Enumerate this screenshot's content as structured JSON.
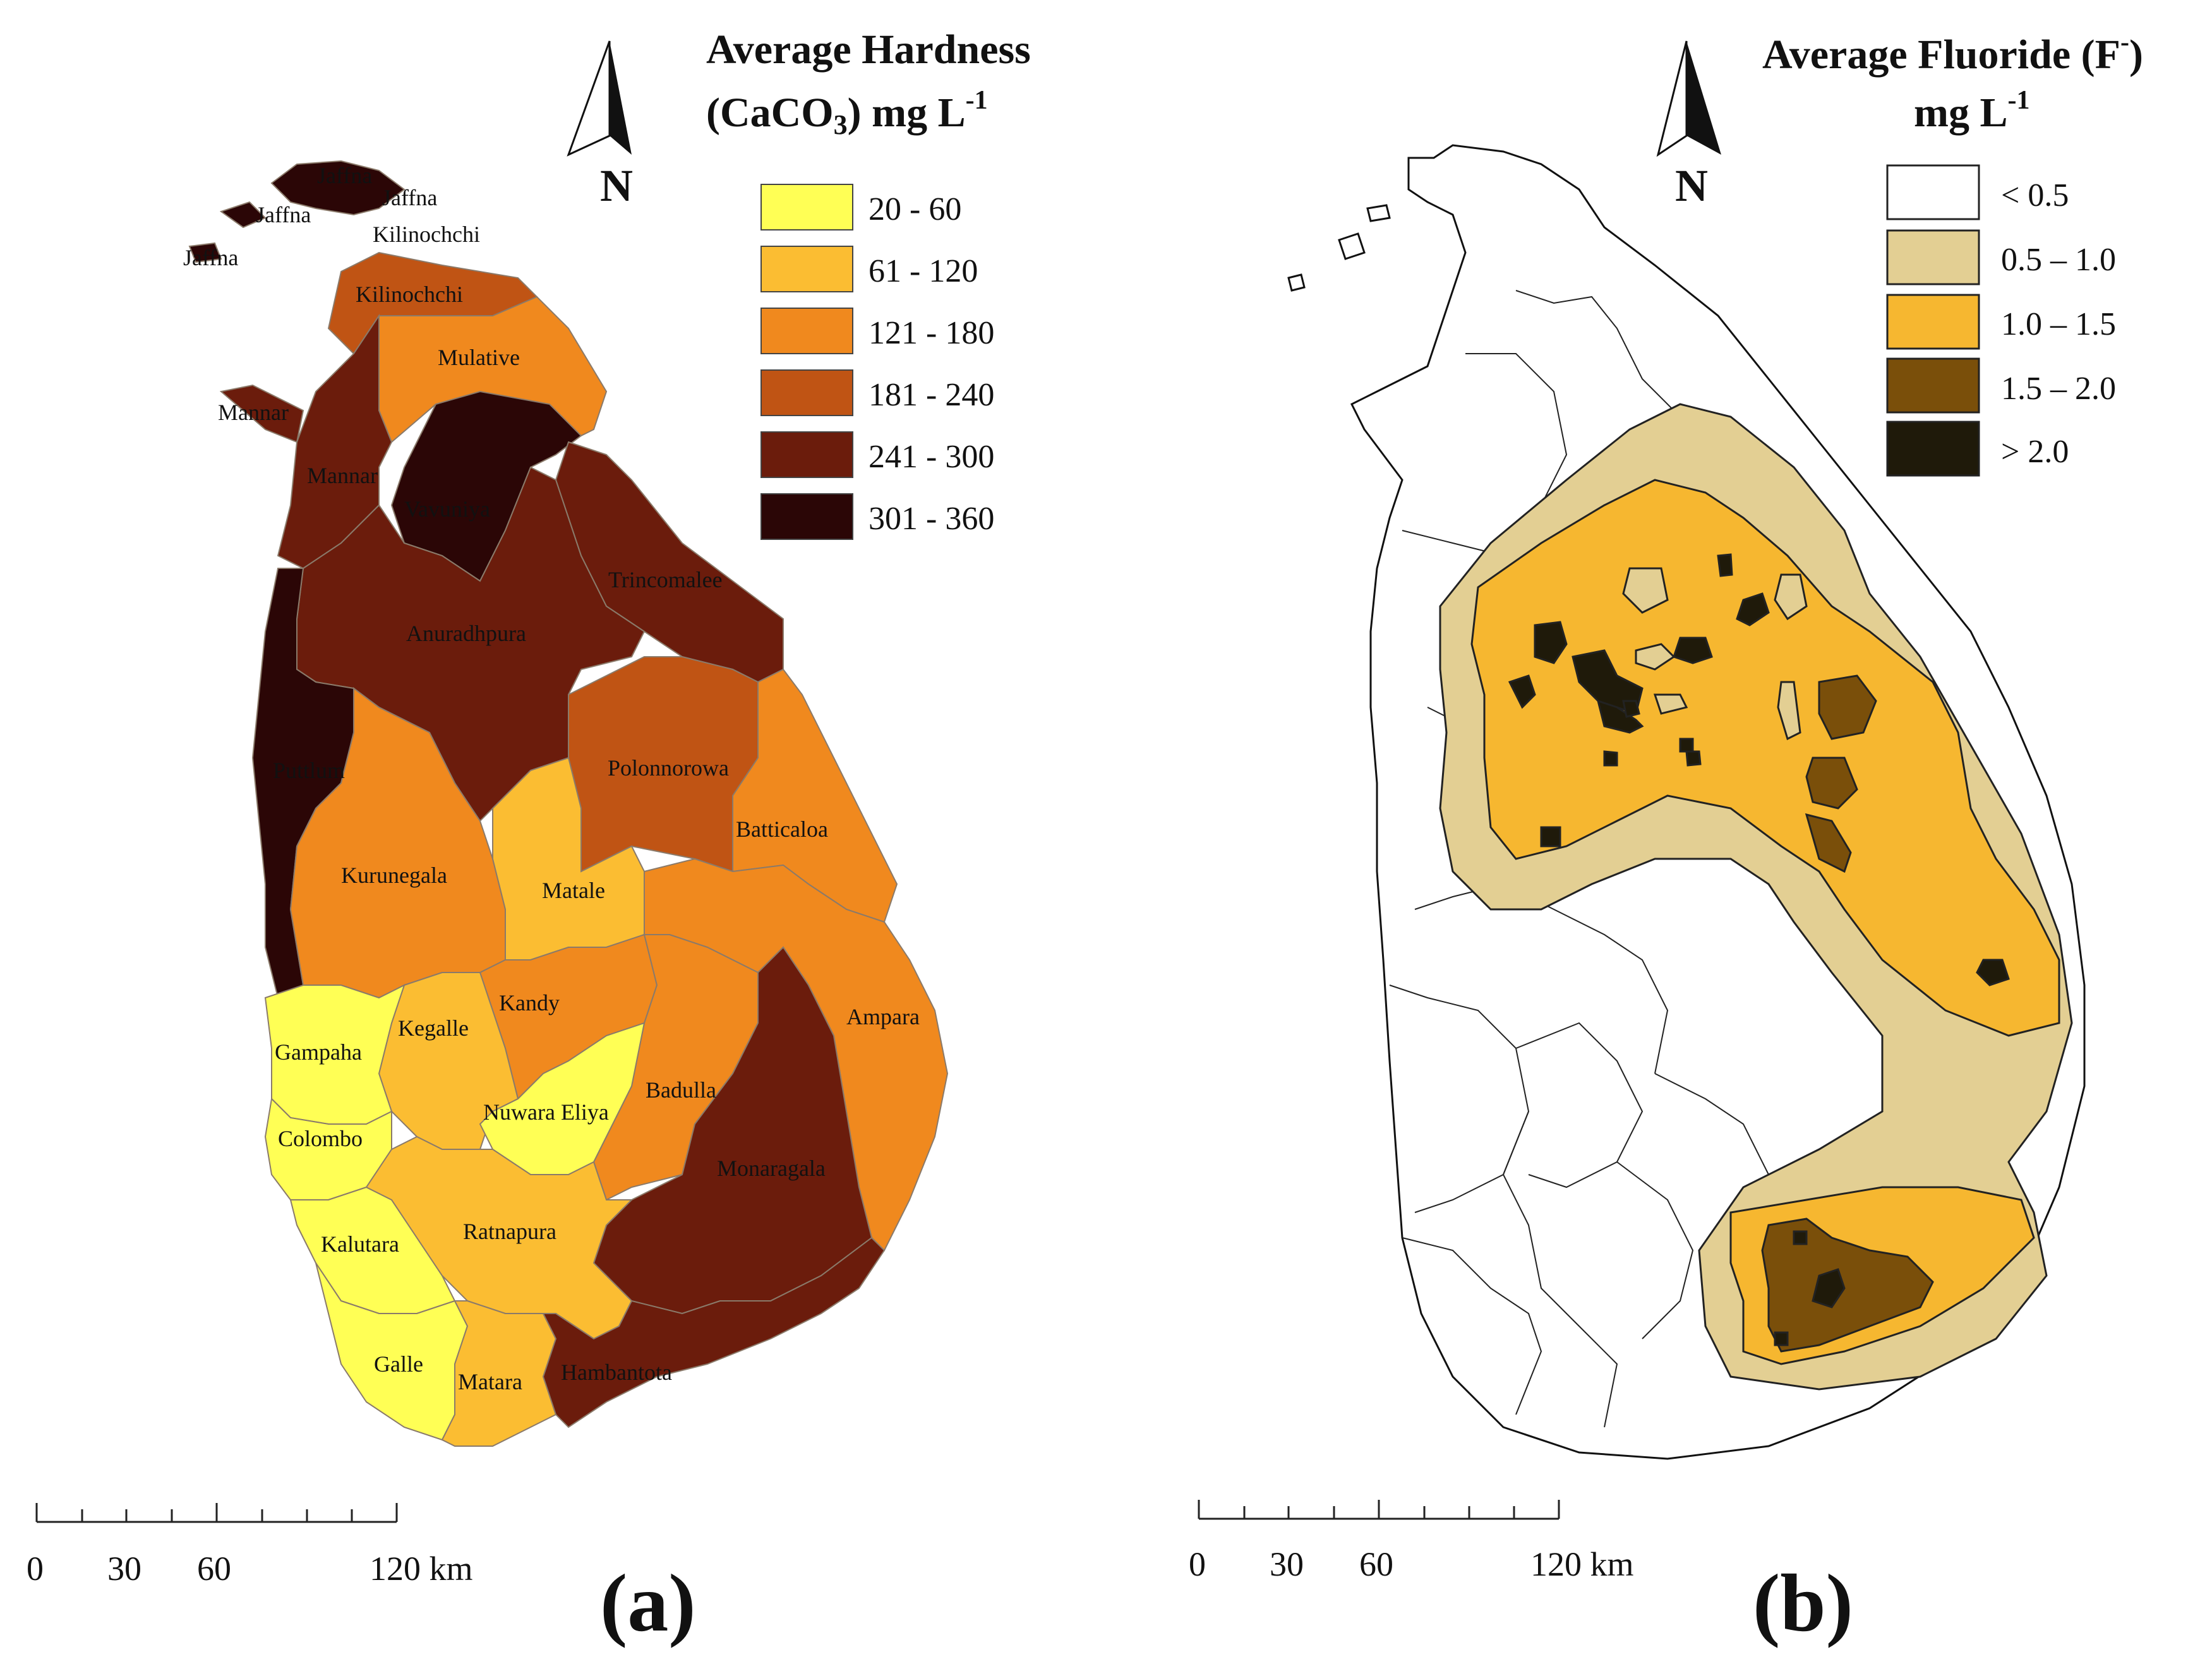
{
  "panels": {
    "a": {
      "label": "(a)",
      "title_line1": "Average Hardness",
      "title_line2_main": "(CaCO",
      "title_line2_sub": "3",
      "title_line2_unit": ") mg L",
      "title_line2_sup": "-1",
      "north_label": "N",
      "legend": [
        {
          "label": "20 - 60",
          "color": "#ffff55"
        },
        {
          "label": "61 - 120",
          "color": "#fbbd32"
        },
        {
          "label": "121 - 180",
          "color": "#f0891e"
        },
        {
          "label": "181 - 240",
          "color": "#c05414"
        },
        {
          "label": "241 - 300",
          "color": "#6b1c0c"
        },
        {
          "label": "301 - 360",
          "color": "#2b0606"
        }
      ],
      "districts": [
        "Jaffna",
        "Jaffna",
        "Jaffna",
        "Jaffna",
        "Kilinochchi",
        "Kilinochchi",
        "Mulative",
        "Mannar",
        "Mannar",
        "Vavuniya",
        "Trincomalee",
        "Anuradhpura",
        "Polonnorowa",
        "Puttlum",
        "Batticaloa",
        "Kurunegala",
        "Matale",
        "Kandy",
        "Ampara",
        "Kegalle",
        "Gampaha",
        "Badulla",
        "Nuwara Eliya",
        "Colombo",
        "Monaragala",
        "Kalutara",
        "Ratnapura",
        "Galle",
        "Matara",
        "Hambantota"
      ],
      "scale_ticks": [
        "0",
        "30",
        "60",
        "120 km"
      ]
    },
    "b": {
      "label": "(b)",
      "title_line1_main": "Average Fluoride (F",
      "title_line1_sup": "-",
      "title_line1_end": ")",
      "title_line2_main": "mg L",
      "title_line2_sup": "-1",
      "north_label": "N",
      "legend": [
        {
          "label": "< 0.5",
          "color": "#ffffff"
        },
        {
          "label": "0.5 – 1.0",
          "color": "#e3cf93"
        },
        {
          "label": "1.0 – 1.5",
          "color": "#f6b730"
        },
        {
          "label": "1.5 – 2.0",
          "color": "#7a4f0a"
        },
        {
          "label": "> 2.0",
          "color": "#1f1a0a"
        }
      ],
      "scale_ticks": [
        "0",
        "30",
        "60",
        "120 km"
      ]
    }
  }
}
